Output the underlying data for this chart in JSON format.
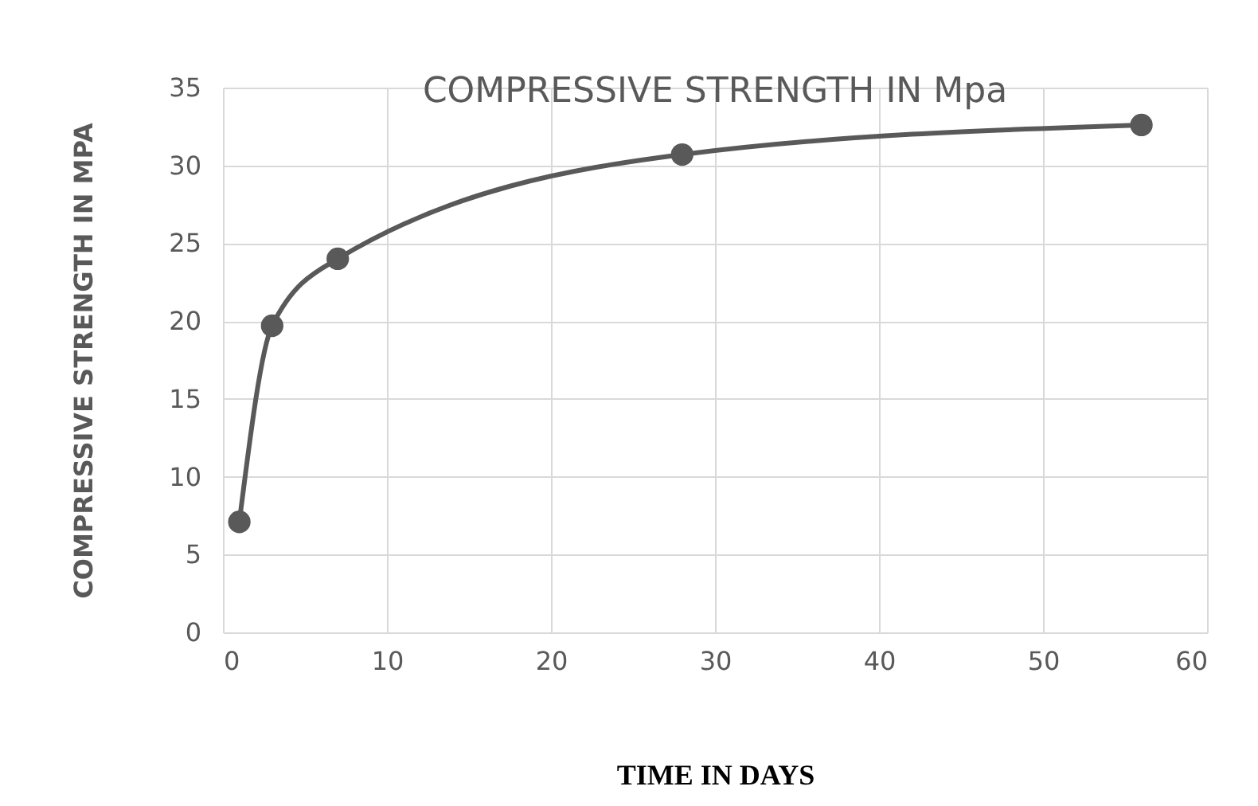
{
  "chart_data": {
    "type": "line",
    "title": "COMPRESSIVE STRENGTH IN Mpa",
    "xlabel": "TIME IN DAYS",
    "ylabel": "COMPRESSIVE STRENGTH IN MPA",
    "x": [
      1,
      3,
      7,
      28,
      56
    ],
    "series": [
      {
        "color": "#595959",
        "values": [
          7.1,
          19.7,
          24.0,
          30.7,
          32.6
        ]
      }
    ],
    "xlim": [
      0,
      60
    ],
    "xticks": [
      0,
      10,
      20,
      30,
      40,
      50,
      60
    ],
    "ylim": [
      0,
      35
    ],
    "yticks": [
      0,
      5,
      10,
      15,
      20,
      25,
      30,
      35
    ],
    "grid": true,
    "marker": "circle",
    "line_style": "solid",
    "legend": false
  }
}
